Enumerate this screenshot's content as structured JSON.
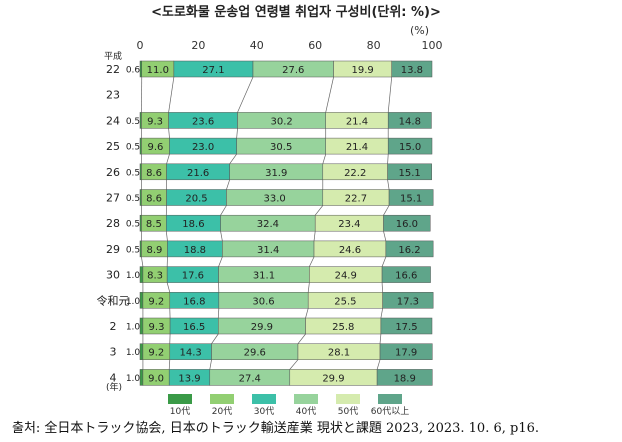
{
  "chart_data": {
    "type": "bar",
    "stacked": true,
    "orientation": "horizontal",
    "percent": true,
    "title": "<도로화물 운송업 연령별 취업자 구성비(단위: %)>",
    "axis_unit": "(%)",
    "era_label": "平成",
    "year_suffix": "(年)",
    "xlim": [
      0,
      100
    ],
    "x_ticks": [
      "0",
      "20",
      "40",
      "60",
      "80",
      "100"
    ],
    "categories": [
      "22",
      "23",
      "24",
      "25",
      "26",
      "27",
      "28",
      "29",
      "30",
      "令和元",
      "2",
      "3",
      "4"
    ],
    "series": [
      {
        "name": "10代",
        "color": "#3a9a47",
        "values": [
          0.6,
          null,
          0.5,
          0.5,
          0.5,
          0.5,
          0.5,
          0.5,
          1.0,
          1.0,
          1.0,
          1.0,
          1.0
        ]
      },
      {
        "name": "20代",
        "color": "#92cf72",
        "values": [
          11.0,
          null,
          9.3,
          9.6,
          8.6,
          8.6,
          8.5,
          8.9,
          8.3,
          9.2,
          9.3,
          9.2,
          9.0
        ]
      },
      {
        "name": "30代",
        "color": "#3cc0a8",
        "values": [
          27.1,
          null,
          23.6,
          23.0,
          21.6,
          20.5,
          18.6,
          18.8,
          17.6,
          16.8,
          16.5,
          14.3,
          13.9
        ]
      },
      {
        "name": "40代",
        "color": "#97d39c",
        "values": [
          27.6,
          null,
          30.2,
          30.5,
          31.9,
          33.0,
          32.4,
          31.4,
          31.1,
          30.6,
          29.9,
          29.6,
          27.4
        ]
      },
      {
        "name": "50代",
        "color": "#d5ebae",
        "values": [
          19.9,
          null,
          21.4,
          21.4,
          22.2,
          22.7,
          23.4,
          24.6,
          24.9,
          25.5,
          25.8,
          28.1,
          29.9
        ]
      },
      {
        "name": "60代以上",
        "color": "#5fa58a",
        "values": [
          13.8,
          null,
          14.8,
          15.0,
          15.1,
          15.1,
          16.0,
          16.2,
          16.6,
          17.3,
          17.5,
          17.9,
          18.9
        ]
      }
    ],
    "labels": {
      "10代": [
        "0.6",
        "",
        "0.5",
        "0.5",
        "0.5",
        "0.5",
        "0.5",
        "0.5",
        "1.0",
        "1.0",
        "1.0",
        "1.0",
        "1.0"
      ],
      "20代": [
        "11.0",
        "",
        "9.3",
        "9.6",
        "8.6",
        "8.6",
        "8.5",
        "8.9",
        "8.3",
        "9.2",
        "9.3",
        "9.2",
        "9.0"
      ],
      "30代": [
        "27.1",
        "",
        "23.6",
        "23.0",
        "21.6",
        "20.5",
        "18.6",
        "18.8",
        "17.6",
        "16.8",
        "16.5",
        "14.3",
        "13.9"
      ],
      "40代": [
        "27.6",
        "",
        "30.2",
        "30.5",
        "31.9",
        "33.0",
        "32.4",
        "31.4",
        "31.1",
        "30.6",
        "29.9",
        "29.6",
        "27.4"
      ],
      "50代": [
        "19.9",
        "",
        "21.4",
        "21.4",
        "22.2",
        "22.7",
        "23.4",
        "24.6",
        "24.9",
        "25.5",
        "25.8",
        "28.1",
        "29.9"
      ],
      "60代以上": [
        "13.8",
        "",
        "14.8",
        "15.0",
        "15.1",
        "15.1",
        "16.0",
        "16.2",
        "16.6",
        "17.3",
        "17.5",
        "17.9",
        "18.9"
      ]
    },
    "legend_position": "bottom",
    "grid": false
  },
  "source": "출처: 全日本トラック協会, 日本のトラック輸送産業 現状と課題 2023, 2023. 10. 6, p16."
}
